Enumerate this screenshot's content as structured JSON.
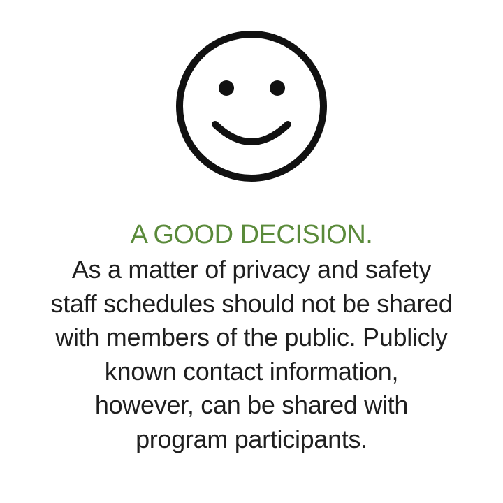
{
  "colors": {
    "background": "#ffffff",
    "heading": "#5a8a3a",
    "text": "#1f1f1f",
    "icon": "#111111"
  },
  "icon": {
    "name": "smiley-face-icon"
  },
  "message": {
    "heading": "A GOOD DECISION.",
    "lines": [
      "As a matter of privacy and safety",
      "staff schedules should not be shared",
      "with members of the public. Publicly",
      "known contact information,",
      "however, can be shared with",
      "program participants."
    ]
  }
}
